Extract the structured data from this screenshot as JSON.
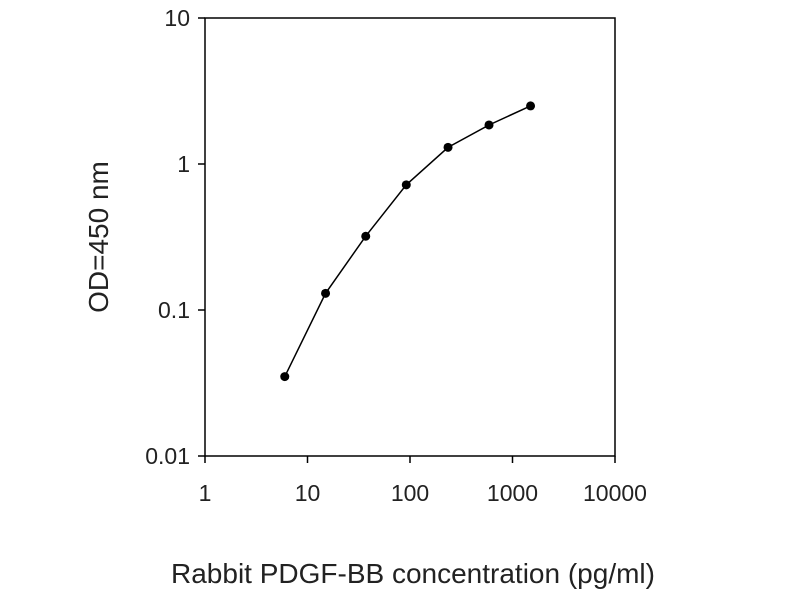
{
  "chart_data": {
    "type": "line",
    "xscale": "log",
    "yscale": "log",
    "xlim": [
      1,
      10000
    ],
    "ylim": [
      0.01,
      10
    ],
    "xlabel": "Rabbit PDGF-BB concentration (pg/ml)",
    "ylabel": "OD=450 nm",
    "x_ticks": [
      1,
      10,
      100,
      1000,
      10000
    ],
    "y_ticks": [
      0.01,
      0.1,
      1,
      10
    ],
    "x_tick_labels": [
      "1",
      "10",
      "100",
      "1000",
      "10000"
    ],
    "y_tick_labels": [
      "0.01",
      "0.1",
      "1",
      "10"
    ],
    "grid": false,
    "legend": "none",
    "series": [
      {
        "x": [
          6,
          15,
          37,
          92,
          235,
          590,
          1500
        ],
        "y": [
          0.035,
          0.13,
          0.32,
          0.72,
          1.3,
          1.85,
          2.5
        ],
        "color": "#000000",
        "marker": "circle"
      }
    ]
  }
}
